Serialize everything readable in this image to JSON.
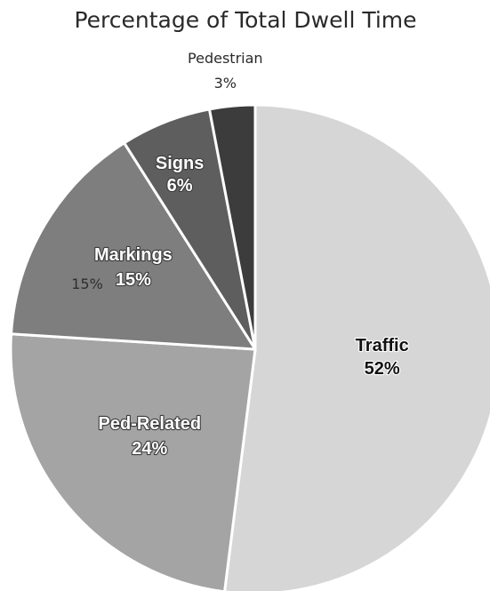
{
  "chart_data": {
    "type": "pie",
    "title": "Percentage of Total Dwell Time",
    "slices": [
      {
        "label": "Traffic",
        "value": 52,
        "value_label": "52%",
        "color": "#d6d6d6"
      },
      {
        "label": "Ped-Related",
        "value": 24,
        "value_label": "24%",
        "color": "#a4a4a4"
      },
      {
        "label": "Markings",
        "value": 15,
        "value_label": "15%",
        "color": "#7e7e7e"
      },
      {
        "label": "Signs",
        "value": 6,
        "value_label": "6%",
        "color": "#5e5e5e"
      },
      {
        "label": "Pedestrian",
        "value": 3,
        "value_label": "3%",
        "color": "#3c3c3c"
      }
    ],
    "start_angle": "12 o'clock",
    "direction": "clockwise",
    "slice_border_color": "#ffffff",
    "legend": "none",
    "ghost_labels": [
      "15%"
    ]
  }
}
